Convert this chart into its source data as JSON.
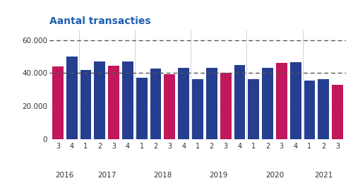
{
  "title": "Aantal transacties",
  "title_color": "#1f5eb0",
  "background_color": "#ffffff",
  "bar_data": [
    {
      "quarter": "3",
      "year": "2016",
      "value": 44000,
      "color": "#c0175d"
    },
    {
      "quarter": "4",
      "year": "2016",
      "value": 50000,
      "color": "#253e8f"
    },
    {
      "quarter": "1",
      "year": "2017",
      "value": 42000,
      "color": "#253e8f"
    },
    {
      "quarter": "2",
      "year": "2017",
      "value": 47000,
      "color": "#253e8f"
    },
    {
      "quarter": "3",
      "year": "2017",
      "value": 44500,
      "color": "#c0175d"
    },
    {
      "quarter": "4",
      "year": "2017",
      "value": 47000,
      "color": "#253e8f"
    },
    {
      "quarter": "1",
      "year": "2018",
      "value": 37000,
      "color": "#253e8f"
    },
    {
      "quarter": "2",
      "year": "2018",
      "value": 42500,
      "color": "#253e8f"
    },
    {
      "quarter": "3",
      "year": "2018",
      "value": 39500,
      "color": "#c0175d"
    },
    {
      "quarter": "4",
      "year": "2018",
      "value": 43000,
      "color": "#253e8f"
    },
    {
      "quarter": "1",
      "year": "2019",
      "value": 36500,
      "color": "#253e8f"
    },
    {
      "quarter": "2",
      "year": "2019",
      "value": 43000,
      "color": "#253e8f"
    },
    {
      "quarter": "3",
      "year": "2019",
      "value": 40000,
      "color": "#c0175d"
    },
    {
      "quarter": "4",
      "year": "2019",
      "value": 45000,
      "color": "#253e8f"
    },
    {
      "quarter": "1",
      "year": "2020",
      "value": 36500,
      "color": "#253e8f"
    },
    {
      "quarter": "2",
      "year": "2020",
      "value": 43000,
      "color": "#253e8f"
    },
    {
      "quarter": "3",
      "year": "2020",
      "value": 46000,
      "color": "#c0175d"
    },
    {
      "quarter": "4",
      "year": "2020",
      "value": 46500,
      "color": "#253e8f"
    },
    {
      "quarter": "1",
      "year": "2021",
      "value": 35500,
      "color": "#253e8f"
    },
    {
      "quarter": "2",
      "year": "2021",
      "value": 36500,
      "color": "#253e8f"
    },
    {
      "quarter": "3",
      "year": "2021",
      "value": 33000,
      "color": "#c0175d"
    }
  ],
  "yticks": [
    0,
    20000,
    40000,
    60000
  ],
  "ytick_labels": [
    "0",
    "20.000",
    "40.000",
    "60.000"
  ],
  "ylim": [
    0,
    66000
  ],
  "hlines": [
    {
      "y": 60000,
      "style": "--",
      "color": "#555555",
      "lw": 1.0
    },
    {
      "y": 40000,
      "style": "--",
      "color": "#555555",
      "lw": 1.0
    }
  ],
  "year_labels": [
    {
      "year": "2016",
      "indices": [
        0,
        1
      ]
    },
    {
      "year": "2017",
      "indices": [
        2,
        3,
        4,
        5
      ]
    },
    {
      "year": "2018",
      "indices": [
        6,
        7,
        8,
        9
      ]
    },
    {
      "year": "2019",
      "indices": [
        10,
        11,
        12,
        13
      ]
    },
    {
      "year": "2020",
      "indices": [
        14,
        15,
        16,
        17
      ]
    },
    {
      "year": "2021",
      "indices": [
        18,
        19,
        20
      ]
    }
  ],
  "year_sep_positions": [
    1.5,
    5.5,
    9.5,
    13.5,
    17.5
  ]
}
